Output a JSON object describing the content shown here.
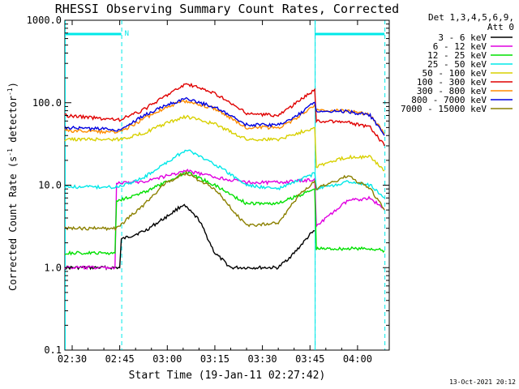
{
  "chart_data": {
    "type": "line",
    "title": "RHESSI Observing Summary Count Rates, Corrected",
    "xlabel": "Start Time (19-Jan-11 02:27:42)",
    "ylabel_main": "Corrected Count Rate (s",
    "ylabel_sup1": "-1",
    "ylabel_mid": " detector",
    "ylabel_sup2": "-1",
    "ylabel_end": ")",
    "yscale": "log",
    "ylim": [
      0.1,
      1000
    ],
    "xlim": [
      "02:27:42",
      "04:10:00"
    ],
    "xticks": [
      "02:30",
      "02:45",
      "03:00",
      "03:15",
      "03:30",
      "03:45",
      "04:00"
    ],
    "yticks": [
      "1000.0",
      "100.0",
      "10.0",
      "1.0",
      "0.1"
    ],
    "legend_header": [
      "Det 1,3,4,5,6,9,",
      "Att 0"
    ],
    "legend_position": "right",
    "timestamp": "13-Oct-2021 20:12",
    "annotations": {
      "night_bars": [
        [
          "02:27:42",
          "02:45:30"
        ],
        [
          "03:46:30",
          "04:08:30"
        ]
      ],
      "saa_marker": "N",
      "vertical_lines_dashed": [
        "02:45:30",
        "03:46:30",
        "04:08:30"
      ],
      "vertical_lines_solid": [
        "02:27:42",
        "03:46:30"
      ]
    },
    "series": [
      {
        "name": "3 - 6 keV",
        "color": "#000000",
        "points": [
          [
            "02:27:42",
            1.0
          ],
          [
            "02:45:00",
            1.0
          ],
          [
            "02:45:30",
            2.2
          ],
          [
            "02:53:00",
            2.8
          ],
          [
            "03:00:00",
            4.2
          ],
          [
            "03:05:00",
            5.8
          ],
          [
            "03:10:00",
            3.8
          ],
          [
            "03:15:00",
            1.5
          ],
          [
            "03:20:00",
            1.0
          ],
          [
            "03:35:00",
            1.0
          ],
          [
            "03:40:00",
            1.5
          ],
          [
            "03:45:00",
            2.5
          ],
          [
            "03:46:30",
            2.8
          ]
        ]
      },
      {
        "name": "6 - 12 keV",
        "color": "#e000e0",
        "points": [
          [
            "02:27:42",
            1.0
          ],
          [
            "02:43:30",
            1.0
          ],
          [
            "02:44:00",
            10.5
          ],
          [
            "02:52:00",
            11
          ],
          [
            "03:00:00",
            13
          ],
          [
            "03:06:00",
            15
          ],
          [
            "03:15:00",
            12.5
          ],
          [
            "03:25:00",
            10.8
          ],
          [
            "03:35:00",
            10.8
          ],
          [
            "03:45:00",
            11.5
          ],
          [
            "03:46:30",
            12
          ],
          [
            "03:47:00",
            3.2
          ],
          [
            "03:57:00",
            6.5
          ],
          [
            "04:04:00",
            7
          ],
          [
            "04:08:30",
            5
          ]
        ]
      },
      {
        "name": "12 - 25 keV",
        "color": "#00e000",
        "points": [
          [
            "02:27:42",
            1.5
          ],
          [
            "02:43:30",
            1.5
          ],
          [
            "02:44:00",
            6.5
          ],
          [
            "02:52:00",
            8
          ],
          [
            "03:00:00",
            11
          ],
          [
            "03:06:00",
            14.5
          ],
          [
            "03:15:00",
            10
          ],
          [
            "03:25:00",
            6
          ],
          [
            "03:35:00",
            6
          ],
          [
            "03:45:00",
            8.5
          ],
          [
            "03:46:30",
            9
          ],
          [
            "03:47:00",
            1.7
          ],
          [
            "04:04:00",
            1.7
          ],
          [
            "04:08:30",
            1.6
          ]
        ]
      },
      {
        "name": "25 - 50 keV",
        "color": "#00e8e8",
        "points": [
          [
            "02:27:42",
            9.5
          ],
          [
            "02:44:00",
            9.5
          ],
          [
            "02:52:00",
            12
          ],
          [
            "03:00:00",
            19
          ],
          [
            "03:06:00",
            27
          ],
          [
            "03:15:00",
            18
          ],
          [
            "03:25:00",
            10
          ],
          [
            "03:35:00",
            9
          ],
          [
            "03:45:00",
            13
          ],
          [
            "03:46:30",
            14
          ],
          [
            "03:47:00",
            9
          ],
          [
            "03:57:00",
            11
          ],
          [
            "04:04:00",
            10
          ],
          [
            "04:08:30",
            7
          ]
        ]
      },
      {
        "name": "50 - 100 keV",
        "color": "#d8d000",
        "points": [
          [
            "02:27:42",
            36
          ],
          [
            "02:45:00",
            36
          ],
          [
            "02:52:00",
            42
          ],
          [
            "03:00:00",
            57
          ],
          [
            "03:06:00",
            68
          ],
          [
            "03:15:00",
            55
          ],
          [
            "03:25:00",
            36
          ],
          [
            "03:35:00",
            36
          ],
          [
            "03:45:00",
            48
          ],
          [
            "03:46:30",
            50
          ],
          [
            "03:47:00",
            17
          ],
          [
            "03:57:00",
            22
          ],
          [
            "04:04:00",
            22
          ],
          [
            "04:08:30",
            15
          ]
        ]
      },
      {
        "name": "100 - 300 keV",
        "color": "#e00000",
        "points": [
          [
            "02:27:42",
            70
          ],
          [
            "02:45:00",
            62
          ],
          [
            "02:52:00",
            80
          ],
          [
            "03:00:00",
            125
          ],
          [
            "03:06:00",
            170
          ],
          [
            "03:15:00",
            130
          ],
          [
            "03:25:00",
            74
          ],
          [
            "03:35:00",
            70
          ],
          [
            "03:40:00",
            95
          ],
          [
            "03:46:30",
            145
          ],
          [
            "03:47:00",
            60
          ],
          [
            "03:57:00",
            58
          ],
          [
            "04:04:00",
            50
          ],
          [
            "04:08:30",
            30
          ]
        ]
      },
      {
        "name": "300 - 800 keV",
        "color": "#ff8c00",
        "points": [
          [
            "02:27:42",
            46
          ],
          [
            "02:45:00",
            44
          ],
          [
            "02:52:00",
            62
          ],
          [
            "03:00:00",
            90
          ],
          [
            "03:06:00",
            105
          ],
          [
            "03:15:00",
            85
          ],
          [
            "03:25:00",
            50
          ],
          [
            "03:35:00",
            50
          ],
          [
            "03:40:00",
            62
          ],
          [
            "03:46:30",
            95
          ],
          [
            "03:47:00",
            80
          ],
          [
            "03:57:00",
            80
          ],
          [
            "04:04:00",
            72
          ],
          [
            "04:08:30",
            42
          ]
        ]
      },
      {
        "name": "800 - 7000 keV",
        "color": "#0000e0",
        "points": [
          [
            "02:27:42",
            50
          ],
          [
            "02:45:00",
            47
          ],
          [
            "02:52:00",
            68
          ],
          [
            "03:00:00",
            95
          ],
          [
            "03:06:00",
            112
          ],
          [
            "03:15:00",
            88
          ],
          [
            "03:25:00",
            54
          ],
          [
            "03:35:00",
            54
          ],
          [
            "03:40:00",
            66
          ],
          [
            "03:46:30",
            100
          ],
          [
            "03:47:00",
            80
          ],
          [
            "03:57:00",
            78
          ],
          [
            "04:04:00",
            70
          ],
          [
            "04:08:30",
            40
          ]
        ]
      },
      {
        "name": "7000 - 15000 keV",
        "color": "#8b8000",
        "points": [
          [
            "02:27:42",
            3.0
          ],
          [
            "02:44:00",
            3.0
          ],
          [
            "02:52:00",
            5.5
          ],
          [
            "03:00:00",
            11
          ],
          [
            "03:06:00",
            14
          ],
          [
            "03:15:00",
            9
          ],
          [
            "03:25:00",
            3.2
          ],
          [
            "03:35:00",
            3.5
          ],
          [
            "03:42:00",
            8
          ],
          [
            "03:46:30",
            11
          ],
          [
            "03:47:00",
            9
          ],
          [
            "03:57:00",
            13
          ],
          [
            "04:04:00",
            9
          ],
          [
            "04:08:30",
            5
          ]
        ]
      }
    ]
  }
}
